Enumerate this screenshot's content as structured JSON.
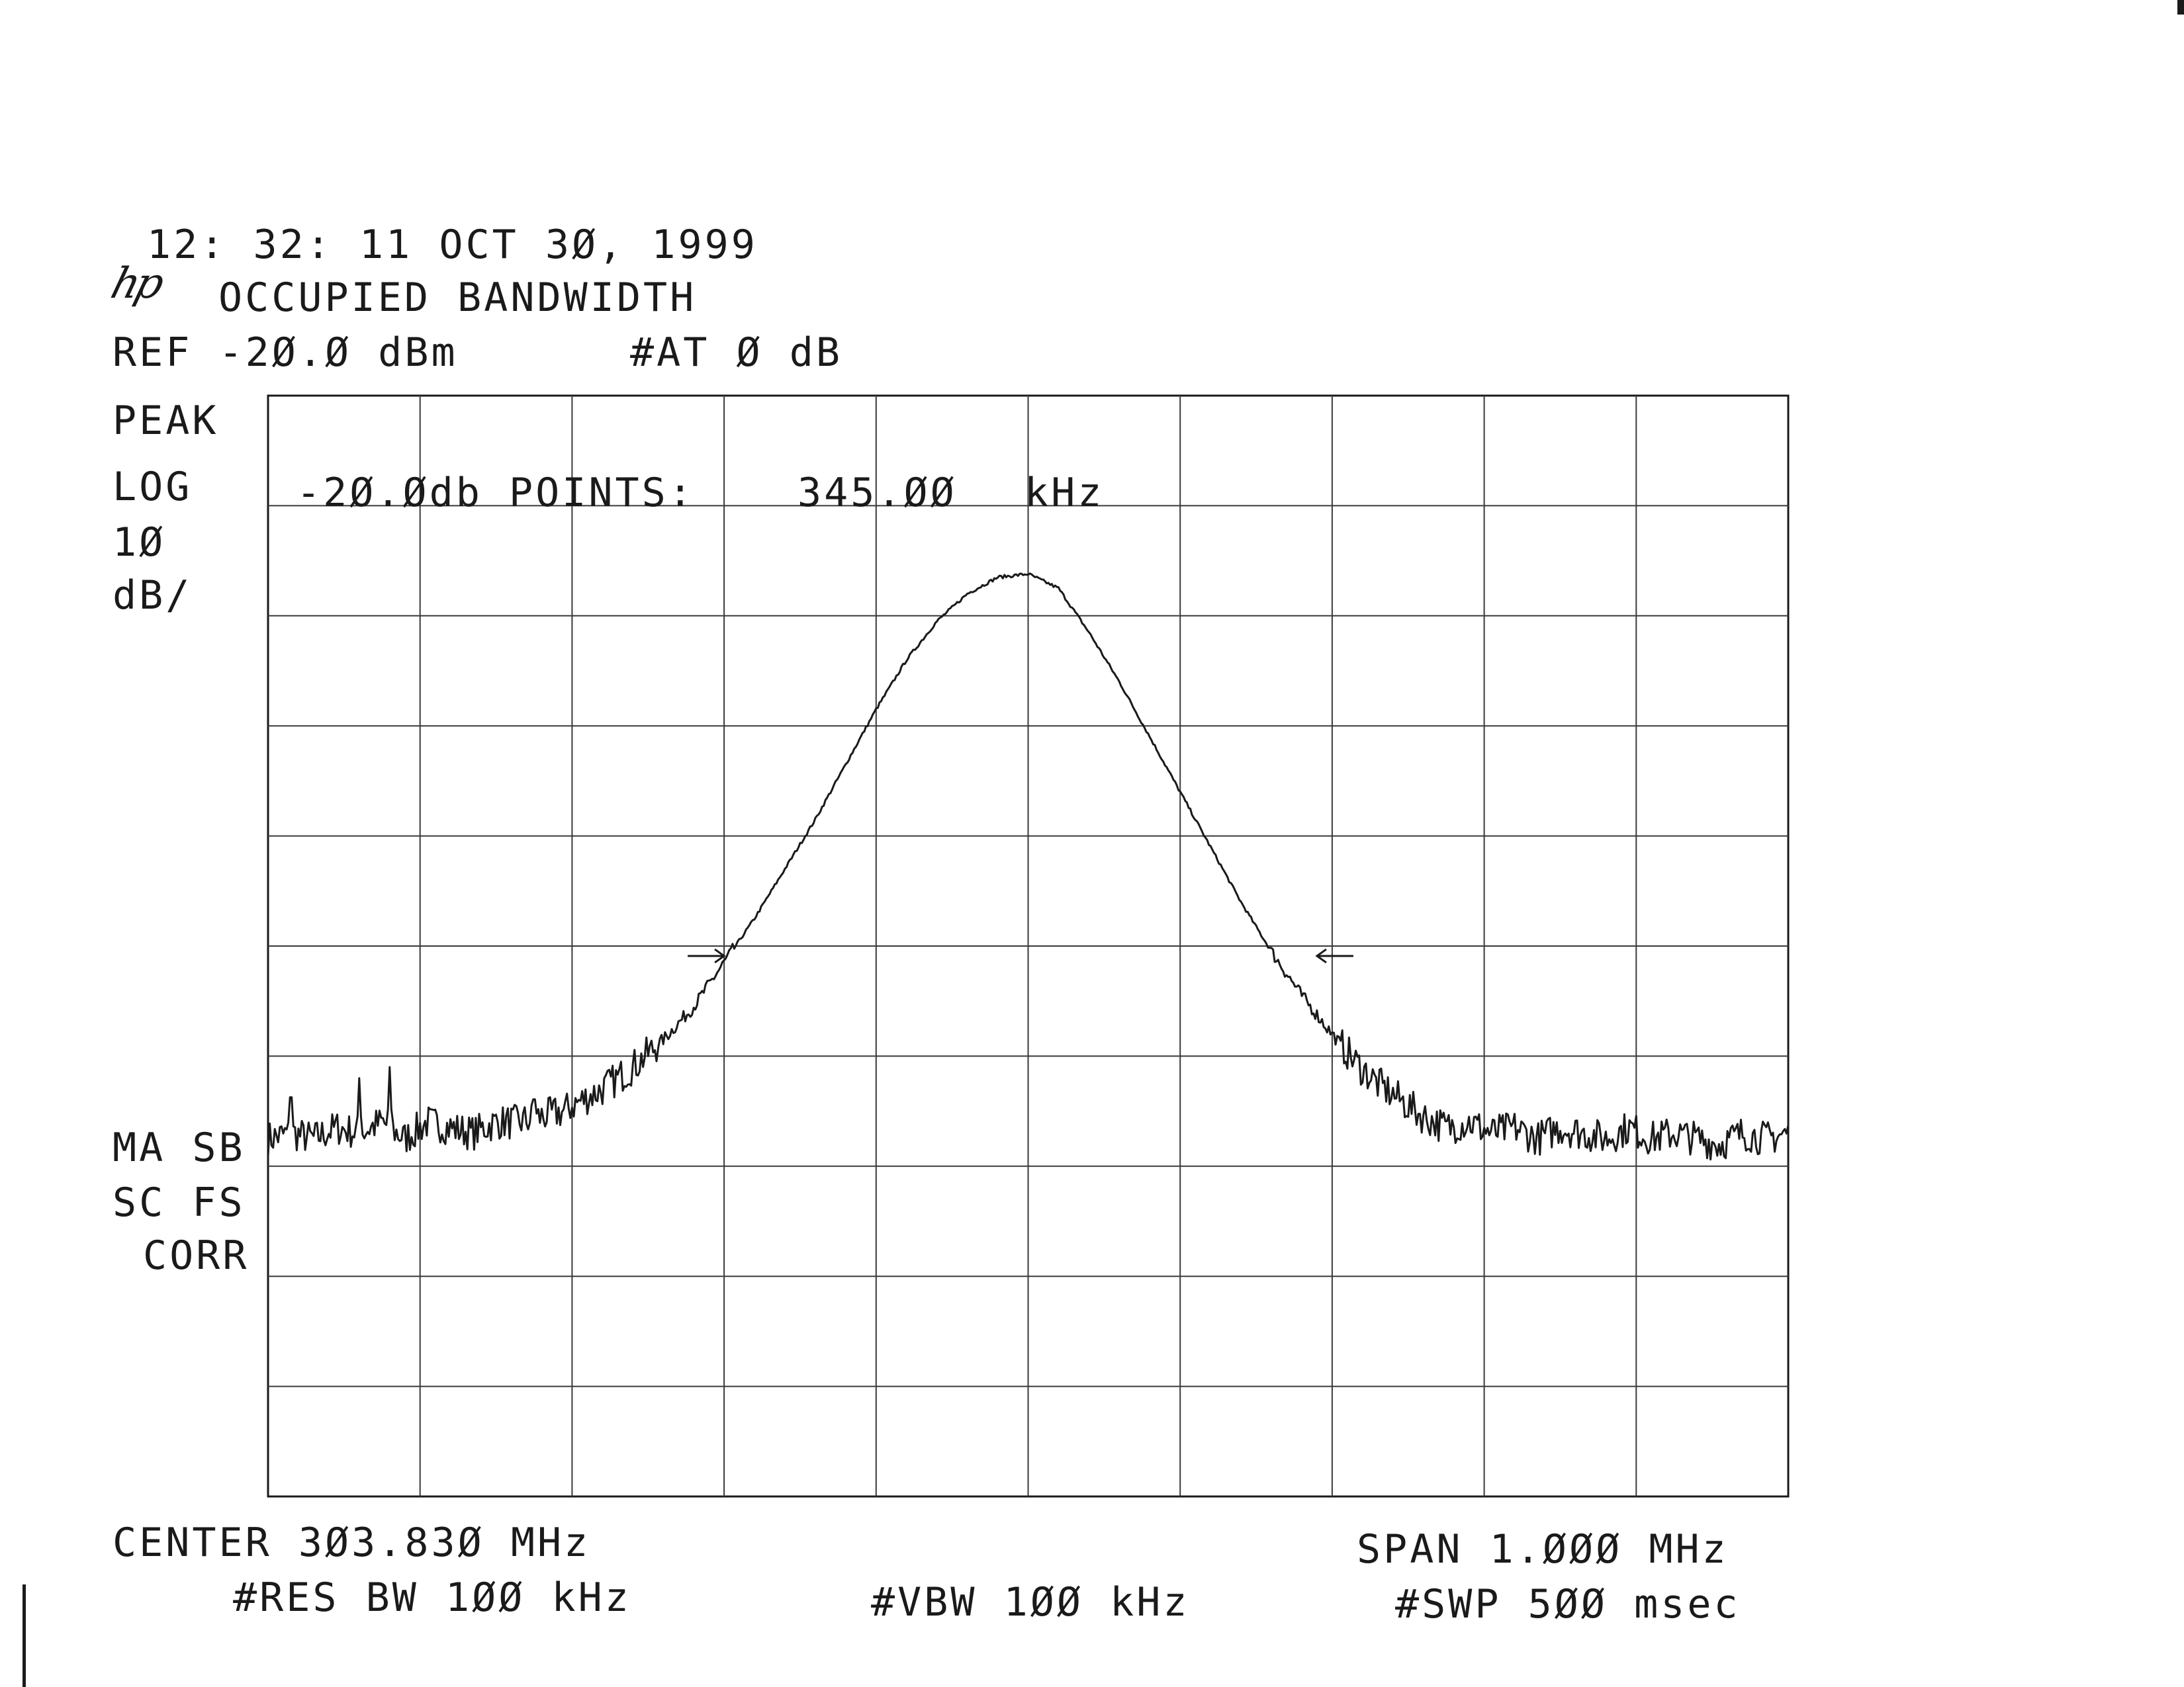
{
  "header": {
    "timestamp": "12: 32: 11 OCT 3Ø, 1999",
    "logo": "hp",
    "mode_title": "OCCUPIED BANDWIDTH",
    "ref_level": "REF -2Ø.Ø dBm",
    "attenuation": "#AT Ø dB"
  },
  "left_annotations": {
    "detector": "PEAK",
    "scale_type": "LOG",
    "scale_value": "1Ø",
    "scale_unit": "dB/",
    "flags_line1": "MA SB",
    "flags_line2": "SC FS",
    "flags_line3": "CORR"
  },
  "measurement": {
    "label": "-2Ø.Ødb POINTS:",
    "value": "345.ØØ",
    "unit": "kHz"
  },
  "footer": {
    "center": "CENTER 3Ø3.83Ø MHz",
    "span": "SPAN 1.ØØØ MHz",
    "res_bw": "#RES BW 1ØØ kHz",
    "vbw": "#VBW 1ØØ kHz",
    "sweep": "#SWP 5ØØ msec"
  },
  "chart_data": {
    "type": "line",
    "xlabel": "",
    "ylabel": "",
    "x_units": "MHz",
    "y_units": "dBm",
    "xlim": [
      303.33,
      304.33
    ],
    "ylim": [
      -120,
      -20
    ],
    "grid": true,
    "grid_divisions": {
      "x": 10,
      "y": 10
    },
    "series": [
      {
        "values_x": [
          303.33,
          303.345,
          303.36,
          303.375,
          303.39,
          303.405,
          303.42,
          303.435,
          303.45,
          303.465,
          303.48,
          303.495,
          303.51,
          303.525,
          303.53,
          303.55,
          303.57,
          303.59,
          303.61,
          303.63,
          303.65,
          303.67,
          303.69,
          303.71,
          303.73,
          303.75,
          303.77,
          303.79,
          303.81,
          303.83,
          303.85,
          303.87,
          303.89,
          303.91,
          303.93,
          303.95,
          303.97,
          303.99,
          304.01,
          304.03,
          304.045,
          304.06,
          304.075,
          304.09,
          304.105,
          304.12,
          304.135,
          304.15,
          304.165,
          304.18,
          304.195,
          304.21,
          304.225,
          304.24,
          304.255,
          304.27,
          304.285,
          304.3,
          304.315,
          304.33
        ],
        "values_y": [
          -87.5,
          -87,
          -87.5,
          -86.5,
          -87,
          -86,
          -87.5,
          -86,
          -86.5,
          -87,
          -86,
          -86,
          -85.5,
          -85,
          -84.5,
          -83,
          -81,
          -78.5,
          -75.5,
          -71.5,
          -67.5,
          -63,
          -58.5,
          -53.5,
          -48.5,
          -44,
          -40.5,
          -38,
          -36.5,
          -36.2,
          -37.5,
          -41.5,
          -46,
          -51,
          -56,
          -61,
          -66,
          -70.5,
          -74.5,
          -78,
          -80.5,
          -82.5,
          -84,
          -85.5,
          -86.5,
          -86,
          -87,
          -86.5,
          -87.5,
          -86.5,
          -87,
          -87.5,
          -86.5,
          -87.5,
          -87,
          -87.5,
          -88,
          -87,
          -87.5,
          -87
        ],
        "spurs": [
          {
            "x": 303.345,
            "y": -82
          },
          {
            "x": 303.39,
            "y": -82
          },
          {
            "x": 303.41,
            "y": -81
          },
          {
            "x": 303.505,
            "y": -83
          }
        ]
      }
    ],
    "markers": [
      {
        "x": 303.63,
        "y": -71.5,
        "direction": "right"
      },
      {
        "x": 304.02,
        "y": -71.5,
        "direction": "left"
      }
    ]
  }
}
